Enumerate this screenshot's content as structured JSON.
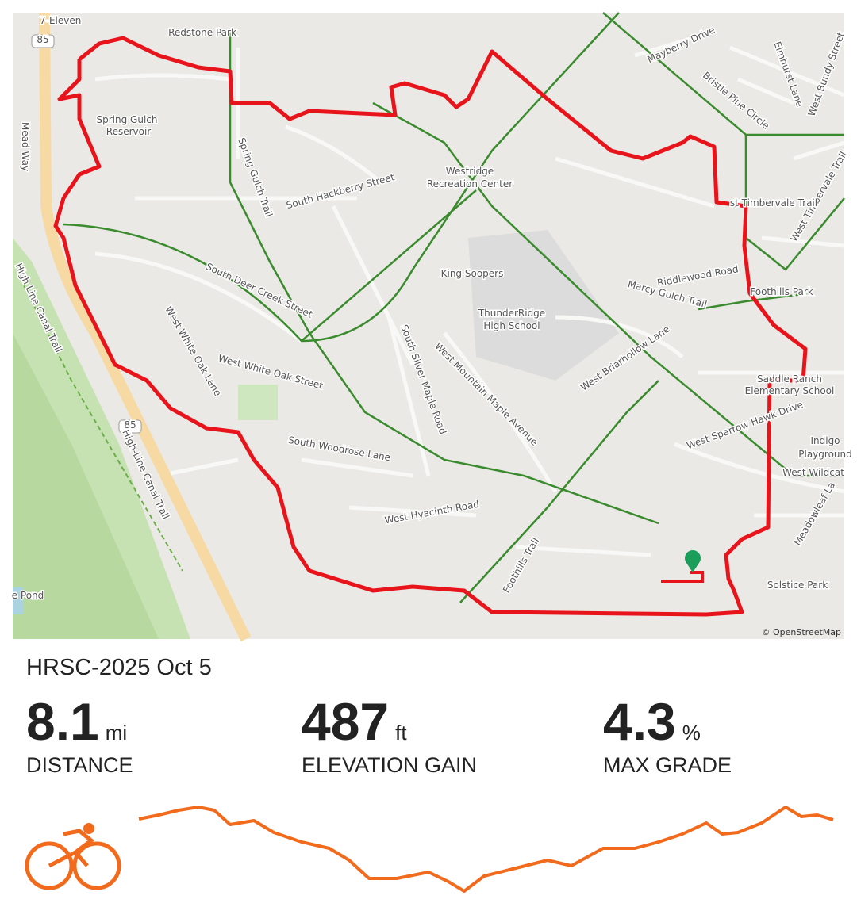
{
  "map": {
    "labels": [
      {
        "text": "7-Eleven"
      },
      {
        "text": "Redstone Park"
      },
      {
        "text": "Spring Gulch"
      },
      {
        "text": "Reservoir"
      },
      {
        "text": "Mead Way"
      },
      {
        "text": "Mayberry Drive"
      },
      {
        "text": "Bristle Pine Circle"
      },
      {
        "text": "Elmhurst Lane"
      },
      {
        "text": "West Bundy Street"
      },
      {
        "text": "Westridge"
      },
      {
        "text": "Recreation Center"
      },
      {
        "text": "South Hackberry Street"
      },
      {
        "text": "Spring Gulch Trail"
      },
      {
        "text": "King Soopers"
      },
      {
        "text": "ThunderRidge"
      },
      {
        "text": "High School"
      },
      {
        "text": "Riddlewood Road"
      },
      {
        "text": "Marcy Gulch Trail"
      },
      {
        "text": "Foothills Park"
      },
      {
        "text": "South Deer Creek Street"
      },
      {
        "text": "West White Oak Lane"
      },
      {
        "text": "West White Oak Street"
      },
      {
        "text": "West Briarhollow Lane"
      },
      {
        "text": "Saddle Ranch"
      },
      {
        "text": "Elementary School"
      },
      {
        "text": "West Sparrow Hawk Drive"
      },
      {
        "text": "Indigo"
      },
      {
        "text": "Playground"
      },
      {
        "text": "South Silver Maple Road"
      },
      {
        "text": "West Mountain Maple Avenue"
      },
      {
        "text": "South Woodrose Lane"
      },
      {
        "text": "West Hyacinth Road"
      },
      {
        "text": "Foothills Trail"
      },
      {
        "text": "High Line Canal Trail"
      },
      {
        "text": "High-Line Canal Trail"
      },
      {
        "text": "West Wildcat"
      },
      {
        "text": "Meadowleaf La"
      },
      {
        "text": "Solstice Park"
      },
      {
        "text": "West Timbervale Trail"
      },
      {
        "text": "st Timbervale Trail"
      },
      {
        "text": "e Pond"
      },
      {
        "text": "85"
      },
      {
        "text": "85"
      }
    ],
    "attribution": "© OpenStreetMap"
  },
  "activity": {
    "title": "HRSC-2025 Oct 5",
    "stats": [
      {
        "value": 8.1,
        "unit": "mi",
        "label": "DISTANCE"
      },
      {
        "value": 487,
        "unit": "ft",
        "label": "ELEVATION GAIN"
      },
      {
        "value": 4.3,
        "unit": "%",
        "label": "MAX GRADE"
      }
    ]
  }
}
